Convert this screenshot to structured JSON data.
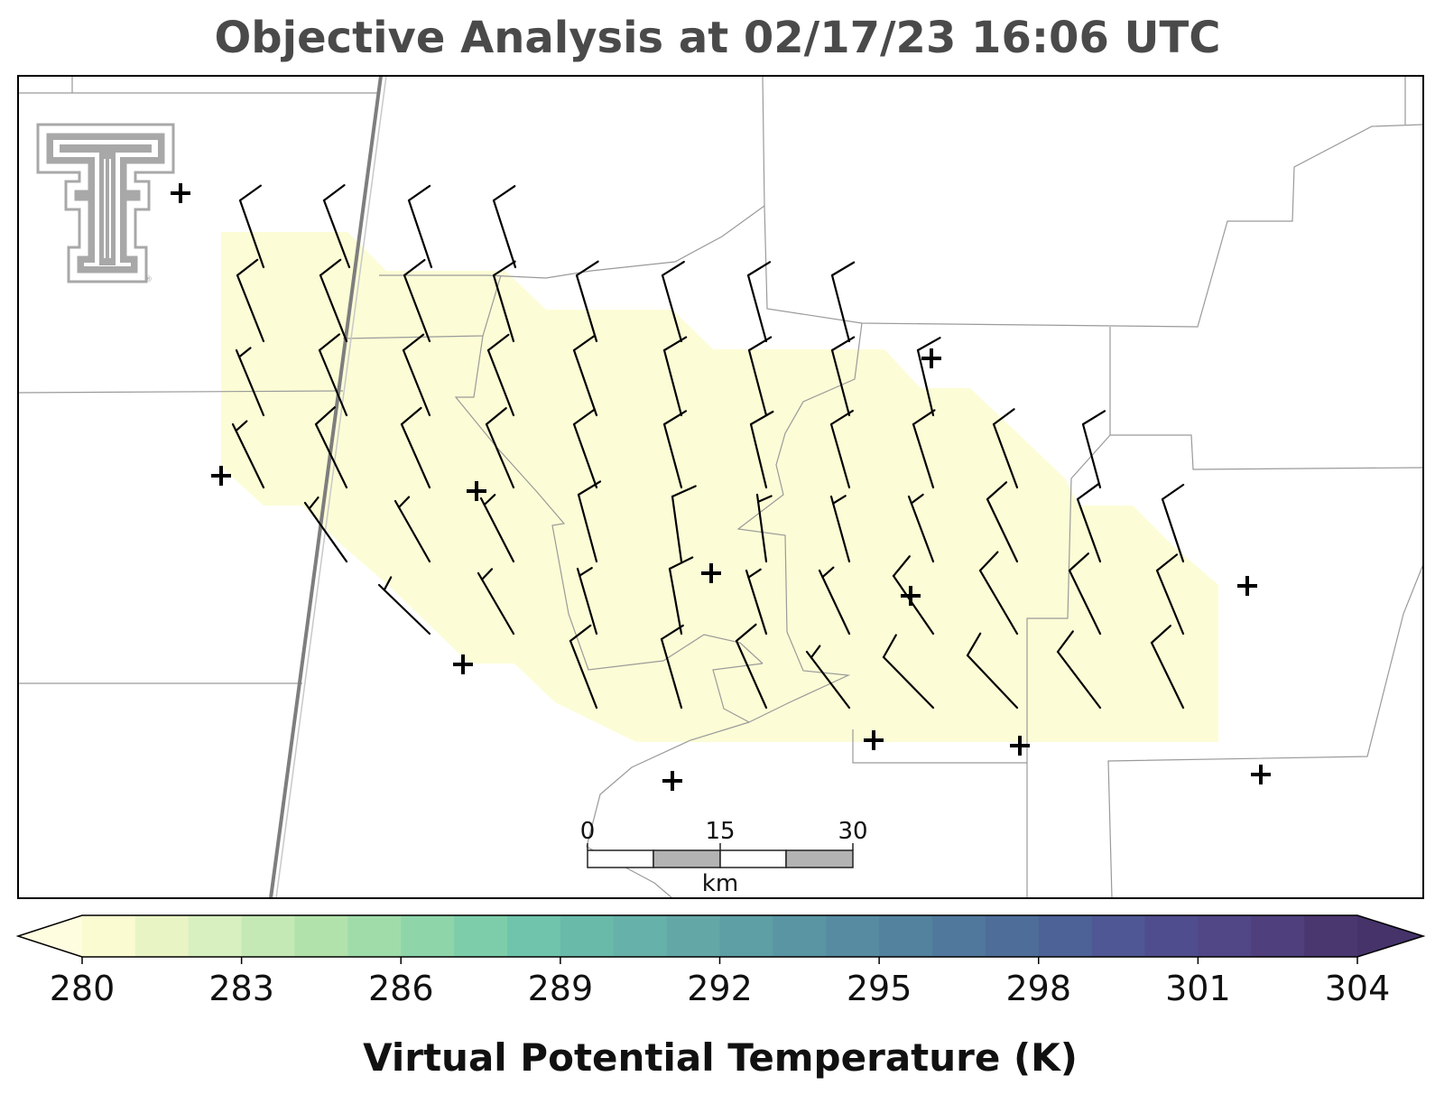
{
  "title": "Objective Analysis at 02/17/23 16:06 UTC",
  "colorbar": {
    "title": "Virtual Potential Temperature (K)",
    "tick_labels": [
      "280",
      "283",
      "286",
      "289",
      "292",
      "295",
      "298",
      "301",
      "304"
    ],
    "colors": [
      "#fafbd0",
      "#e9f4c5",
      "#d8efbf",
      "#c4e9b4",
      "#b2e2ab",
      "#a0dcaa",
      "#8ed5aa",
      "#7dcdaa",
      "#6fc4ab",
      "#6abaaa",
      "#66b1a9",
      "#63a8a7",
      "#5e9ea5",
      "#5a95a3",
      "#568ba1",
      "#53829f",
      "#50789c",
      "#4e6e99",
      "#4d6296",
      "#4f5894",
      "#504d8e",
      "#514686",
      "#503f7d",
      "#4b3770"
    ],
    "under_color": "#fffde0",
    "over_color": "#45336a"
  },
  "scale_bar": {
    "labels": [
      "0",
      "15",
      "30"
    ],
    "unit": "km"
  },
  "logo": {
    "name": "Texas Tech Double T"
  },
  "symbols": {
    "station_marker": "plus",
    "wind": "wind-barb"
  },
  "analysis_field": {
    "variable": "Virtual Potential Temperature",
    "shaded_value_k": 280.5
  }
}
